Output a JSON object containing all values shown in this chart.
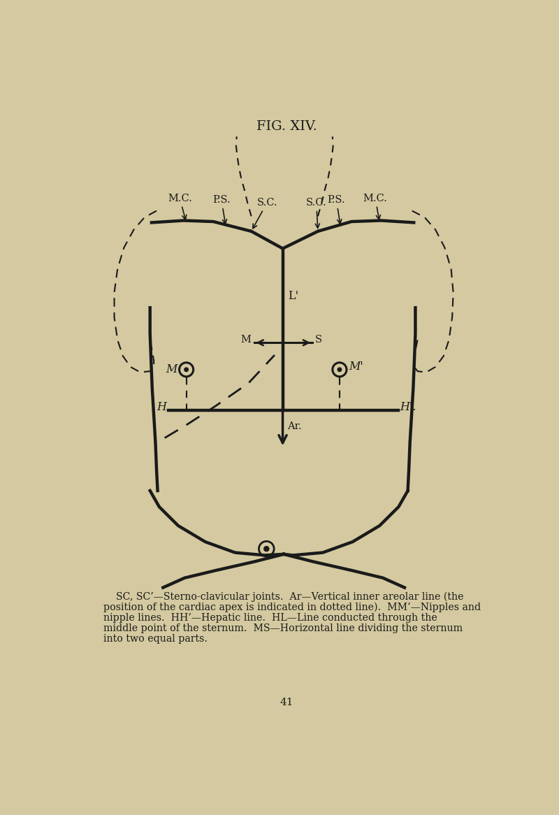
{
  "bg_color": "#d4c9a0",
  "line_color": "#1a1a1a",
  "title": "FIG. XIV.",
  "page_number": "41",
  "caption_line1": "    SC, SC’—Sterno-clavicular joints.  Ar—Vertical inner areolar line (the",
  "caption_line2": "position of the cardiac apex is indicated in dotted line).  MM’—Nipples and",
  "caption_line3": "nipple lines.  HH’—Hepatic line.  HL—Line conducted through the",
  "caption_line4": "middle point of the sternum.  MS—Horizontal line dividing the sternum",
  "caption_line5": "into two equal parts."
}
